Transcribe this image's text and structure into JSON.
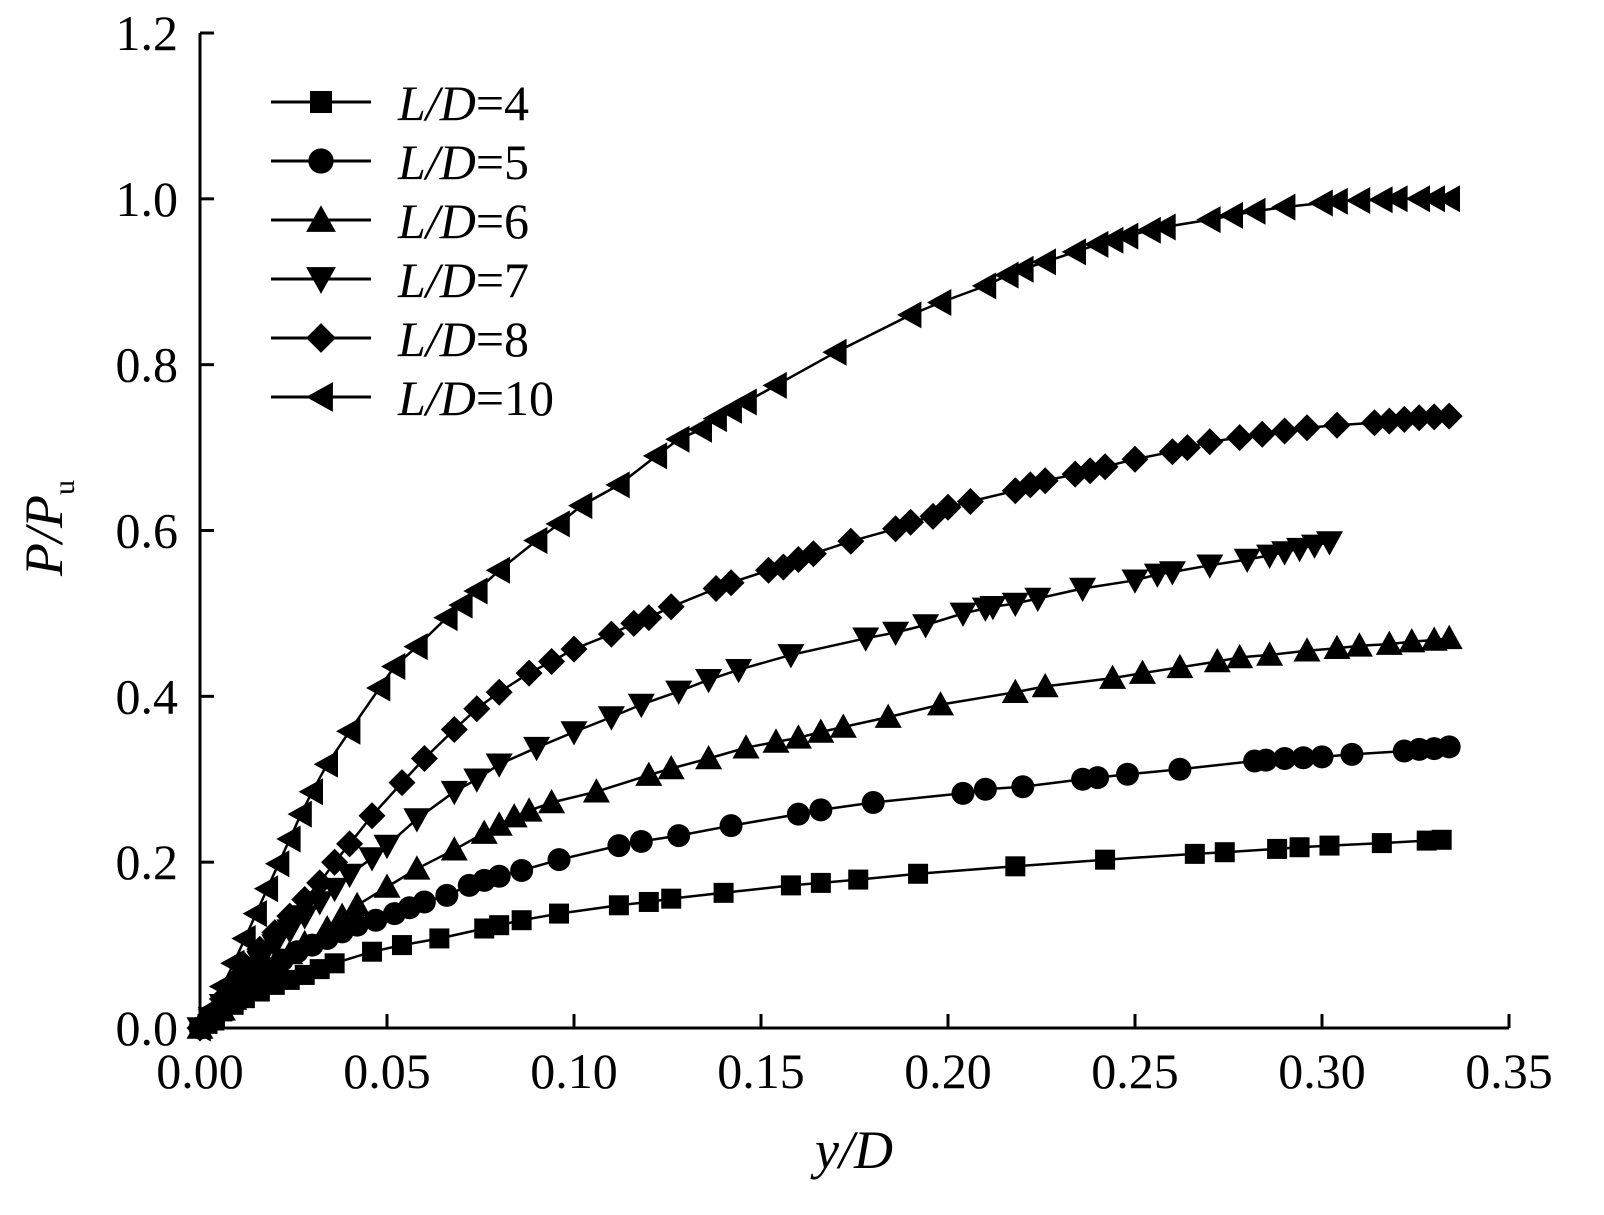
{
  "chart_data": {
    "type": "line",
    "xlabel": "y/D",
    "ylabel_main": "P/P",
    "ylabel_sub": "u",
    "xlim": [
      0,
      0.35
    ],
    "ylim": [
      0,
      1.2
    ],
    "x_ticks": [
      "0.00",
      "0.05",
      "0.10",
      "0.15",
      "0.20",
      "0.25",
      "0.30",
      "0.35"
    ],
    "y_ticks": [
      "0.0",
      "0.2",
      "0.4",
      "0.6",
      "0.8",
      "1.0",
      "1.2"
    ],
    "grid": false,
    "legend_position": "top-left",
    "series": [
      {
        "name": "L/D=4",
        "marker": "square",
        "x": [
          0,
          0.002,
          0.004,
          0.006,
          0.009,
          0.012,
          0.016,
          0.02,
          0.024,
          0.028,
          0.032,
          0.036,
          0.046,
          0.054,
          0.064,
          0.076,
          0.08,
          0.086,
          0.096,
          0.112,
          0.12,
          0.126,
          0.14,
          0.158,
          0.166,
          0.176,
          0.192,
          0.218,
          0.242,
          0.266,
          0.274,
          0.288,
          0.294,
          0.302,
          0.316,
          0.328,
          0.332
        ],
        "y": [
          0,
          0.005,
          0.012,
          0.02,
          0.028,
          0.036,
          0.044,
          0.052,
          0.058,
          0.064,
          0.071,
          0.078,
          0.092,
          0.1,
          0.108,
          0.12,
          0.124,
          0.13,
          0.138,
          0.148,
          0.152,
          0.156,
          0.163,
          0.172,
          0.175,
          0.179,
          0.186,
          0.195,
          0.203,
          0.21,
          0.212,
          0.216,
          0.218,
          0.22,
          0.223,
          0.226,
          0.227
        ]
      },
      {
        "name": "L/D=5",
        "marker": "circle",
        "x": [
          0,
          0.002,
          0.004,
          0.006,
          0.008,
          0.011,
          0.014,
          0.018,
          0.022,
          0.026,
          0.03,
          0.034,
          0.038,
          0.042,
          0.047,
          0.052,
          0.056,
          0.06,
          0.066,
          0.072,
          0.076,
          0.08,
          0.086,
          0.096,
          0.112,
          0.118,
          0.128,
          0.142,
          0.16,
          0.166,
          0.18,
          0.204,
          0.21,
          0.22,
          0.236,
          0.24,
          0.248,
          0.262,
          0.282,
          0.285,
          0.29,
          0.295,
          0.3,
          0.308,
          0.322,
          0.326,
          0.33,
          0.334
        ],
        "y": [
          0,
          0.008,
          0.018,
          0.028,
          0.038,
          0.05,
          0.062,
          0.072,
          0.082,
          0.092,
          0.1,
          0.108,
          0.116,
          0.124,
          0.13,
          0.138,
          0.145,
          0.152,
          0.16,
          0.172,
          0.178,
          0.183,
          0.19,
          0.203,
          0.22,
          0.225,
          0.232,
          0.244,
          0.258,
          0.263,
          0.272,
          0.283,
          0.288,
          0.291,
          0.3,
          0.302,
          0.306,
          0.312,
          0.322,
          0.323,
          0.325,
          0.326,
          0.327,
          0.33,
          0.334,
          0.336,
          0.337,
          0.339
        ]
      },
      {
        "name": "L/D=6",
        "marker": "triangle-up",
        "x": [
          0,
          0.003,
          0.006,
          0.009,
          0.012,
          0.016,
          0.02,
          0.024,
          0.028,
          0.034,
          0.038,
          0.042,
          0.05,
          0.058,
          0.068,
          0.076,
          0.08,
          0.084,
          0.088,
          0.094,
          0.106,
          0.12,
          0.126,
          0.136,
          0.146,
          0.154,
          0.16,
          0.166,
          0.172,
          0.184,
          0.198,
          0.218,
          0.226,
          0.244,
          0.252,
          0.262,
          0.272,
          0.278,
          0.286,
          0.296,
          0.304,
          0.31,
          0.318,
          0.324,
          0.33,
          0.334
        ],
        "y": [
          0,
          0.01,
          0.022,
          0.035,
          0.048,
          0.06,
          0.075,
          0.09,
          0.102,
          0.12,
          0.135,
          0.148,
          0.17,
          0.192,
          0.215,
          0.235,
          0.245,
          0.255,
          0.262,
          0.272,
          0.285,
          0.305,
          0.313,
          0.325,
          0.338,
          0.345,
          0.35,
          0.357,
          0.363,
          0.375,
          0.39,
          0.405,
          0.412,
          0.422,
          0.428,
          0.435,
          0.442,
          0.447,
          0.45,
          0.455,
          0.458,
          0.461,
          0.463,
          0.466,
          0.468,
          0.47
        ]
      },
      {
        "name": "L/D=7",
        "marker": "triangle-down",
        "x": [
          0,
          0.003,
          0.006,
          0.009,
          0.012,
          0.016,
          0.02,
          0.024,
          0.028,
          0.032,
          0.036,
          0.04,
          0.046,
          0.05,
          0.058,
          0.068,
          0.074,
          0.08,
          0.09,
          0.1,
          0.11,
          0.118,
          0.128,
          0.136,
          0.144,
          0.158,
          0.178,
          0.186,
          0.194,
          0.204,
          0.21,
          0.212,
          0.218,
          0.224,
          0.236,
          0.25,
          0.256,
          0.26,
          0.27,
          0.28,
          0.286,
          0.29,
          0.294,
          0.298,
          0.302
        ],
        "y": [
          0,
          0.012,
          0.028,
          0.045,
          0.062,
          0.08,
          0.1,
          0.118,
          0.135,
          0.152,
          0.168,
          0.185,
          0.205,
          0.22,
          0.252,
          0.285,
          0.3,
          0.318,
          0.338,
          0.357,
          0.375,
          0.39,
          0.406,
          0.42,
          0.432,
          0.45,
          0.47,
          0.477,
          0.486,
          0.5,
          0.506,
          0.508,
          0.512,
          0.518,
          0.53,
          0.54,
          0.547,
          0.55,
          0.558,
          0.565,
          0.57,
          0.574,
          0.578,
          0.582,
          0.586
        ]
      },
      {
        "name": "L/D=8",
        "marker": "diamond",
        "x": [
          0,
          0.003,
          0.006,
          0.009,
          0.012,
          0.016,
          0.02,
          0.024,
          0.028,
          0.032,
          0.036,
          0.04,
          0.046,
          0.054,
          0.06,
          0.068,
          0.074,
          0.08,
          0.088,
          0.094,
          0.1,
          0.11,
          0.116,
          0.12,
          0.126,
          0.138,
          0.142,
          0.152,
          0.156,
          0.16,
          0.164,
          0.174,
          0.186,
          0.19,
          0.196,
          0.2,
          0.206,
          0.218,
          0.222,
          0.226,
          0.234,
          0.238,
          0.242,
          0.25,
          0.26,
          0.264,
          0.27,
          0.278,
          0.284,
          0.29,
          0.296,
          0.304,
          0.314,
          0.318,
          0.322,
          0.326,
          0.33,
          0.334
        ],
        "y": [
          0,
          0.015,
          0.035,
          0.055,
          0.075,
          0.095,
          0.115,
          0.135,
          0.155,
          0.175,
          0.2,
          0.222,
          0.256,
          0.296,
          0.325,
          0.36,
          0.385,
          0.405,
          0.428,
          0.442,
          0.457,
          0.475,
          0.488,
          0.495,
          0.508,
          0.53,
          0.537,
          0.552,
          0.556,
          0.565,
          0.572,
          0.587,
          0.602,
          0.61,
          0.617,
          0.628,
          0.635,
          0.648,
          0.655,
          0.66,
          0.668,
          0.672,
          0.677,
          0.686,
          0.695,
          0.7,
          0.707,
          0.712,
          0.716,
          0.72,
          0.724,
          0.727,
          0.73,
          0.732,
          0.734,
          0.736,
          0.737,
          0.738
        ]
      },
      {
        "name": "L/D=10",
        "marker": "triangle-left",
        "x": [
          0,
          0.003,
          0.006,
          0.009,
          0.012,
          0.015,
          0.018,
          0.021,
          0.024,
          0.027,
          0.03,
          0.034,
          0.04,
          0.048,
          0.052,
          0.058,
          0.066,
          0.07,
          0.074,
          0.08,
          0.09,
          0.096,
          0.102,
          0.112,
          0.122,
          0.128,
          0.134,
          0.138,
          0.142,
          0.146,
          0.154,
          0.17,
          0.19,
          0.198,
          0.21,
          0.216,
          0.22,
          0.226,
          0.234,
          0.24,
          0.244,
          0.248,
          0.254,
          0.258,
          0.27,
          0.276,
          0.282,
          0.29,
          0.3,
          0.304,
          0.31,
          0.316,
          0.32,
          0.326,
          0.33,
          0.334
        ],
        "y": [
          0,
          0.022,
          0.05,
          0.078,
          0.108,
          0.138,
          0.168,
          0.198,
          0.228,
          0.258,
          0.285,
          0.318,
          0.358,
          0.41,
          0.436,
          0.46,
          0.495,
          0.51,
          0.527,
          0.552,
          0.588,
          0.608,
          0.63,
          0.655,
          0.69,
          0.71,
          0.722,
          0.735,
          0.745,
          0.755,
          0.775,
          0.815,
          0.86,
          0.875,
          0.895,
          0.908,
          0.915,
          0.924,
          0.936,
          0.945,
          0.95,
          0.955,
          0.962,
          0.966,
          0.975,
          0.98,
          0.985,
          0.99,
          0.995,
          0.997,
          0.998,
          0.999,
          1.0,
          1.0,
          1.0,
          1.0
        ]
      }
    ]
  }
}
